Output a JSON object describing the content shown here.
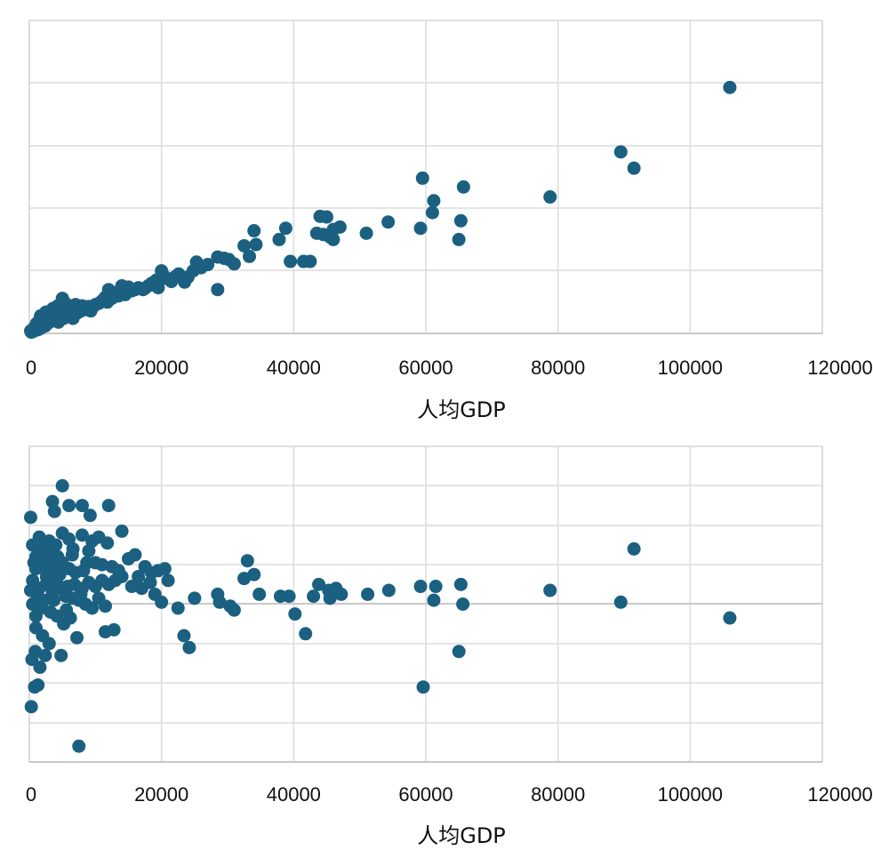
{
  "chart_data": [
    {
      "type": "scatter",
      "xlabel": "人均GDP",
      "ylabel": "",
      "title": "",
      "xlim": [
        0,
        120000
      ],
      "ylim": [
        0,
        5
      ],
      "xticks": [
        "0",
        "20000",
        "40000",
        "60000",
        "80000",
        "100000",
        "120000"
      ],
      "grid": true,
      "color": "#1b6080",
      "points": [
        [
          106000,
          3.93
        ],
        [
          89500,
          2.9
        ],
        [
          91500,
          2.64
        ],
        [
          78800,
          2.18
        ],
        [
          59500,
          2.48
        ],
        [
          61200,
          2.12
        ],
        [
          61000,
          1.93
        ],
        [
          65700,
          2.34
        ],
        [
          65300,
          1.8
        ],
        [
          65000,
          1.5
        ],
        [
          59200,
          1.68
        ],
        [
          54300,
          1.78
        ],
        [
          51000,
          1.6
        ],
        [
          47000,
          1.7
        ],
        [
          46000,
          1.66
        ],
        [
          45000,
          1.86
        ],
        [
          44000,
          1.87
        ],
        [
          43500,
          1.6
        ],
        [
          45500,
          1.54
        ],
        [
          46000,
          1.5
        ],
        [
          44500,
          1.58
        ],
        [
          42500,
          1.15
        ],
        [
          41500,
          1.15
        ],
        [
          39500,
          1.15
        ],
        [
          38800,
          1.68
        ],
        [
          37800,
          1.5
        ],
        [
          34000,
          1.64
        ],
        [
          34300,
          1.42
        ],
        [
          33300,
          1.23
        ],
        [
          32500,
          1.4
        ],
        [
          31000,
          1.11
        ],
        [
          30200,
          1.18
        ],
        [
          29500,
          1.2
        ],
        [
          28500,
          1.22
        ],
        [
          28500,
          0.7
        ],
        [
          25300,
          1.14
        ],
        [
          24800,
          1.0
        ],
        [
          23500,
          0.82
        ],
        [
          24000,
          0.9
        ],
        [
          22600,
          0.95
        ],
        [
          21500,
          0.83
        ],
        [
          20500,
          0.88
        ],
        [
          20000,
          1.0
        ],
        [
          19500,
          0.73
        ],
        [
          19000,
          0.77
        ],
        [
          18000,
          0.76
        ],
        [
          17200,
          0.7
        ],
        [
          16500,
          0.73
        ],
        [
          15500,
          0.68
        ],
        [
          15000,
          0.74
        ],
        [
          14500,
          0.62
        ],
        [
          14000,
          0.76
        ],
        [
          13500,
          0.6
        ],
        [
          12500,
          0.56
        ],
        [
          12000,
          0.7
        ],
        [
          11800,
          0.5
        ],
        [
          11000,
          0.52
        ],
        [
          10000,
          0.46
        ],
        [
          9600,
          0.42
        ],
        [
          9000,
          0.43
        ],
        [
          8500,
          0.38
        ],
        [
          8000,
          0.44
        ],
        [
          7800,
          0.36
        ],
        [
          7500,
          0.41
        ],
        [
          7000,
          0.46
        ],
        [
          6800,
          0.3
        ],
        [
          6500,
          0.4
        ],
        [
          6300,
          0.44
        ],
        [
          6000,
          0.36
        ],
        [
          5800,
          0.3
        ],
        [
          5700,
          0.4
        ],
        [
          5500,
          0.46
        ],
        [
          5300,
          0.5
        ],
        [
          5000,
          0.56
        ],
        [
          5000,
          0.34
        ],
        [
          4800,
          0.3
        ],
        [
          4700,
          0.26
        ],
        [
          4500,
          0.37
        ],
        [
          4300,
          0.44
        ],
        [
          4100,
          0.3
        ],
        [
          4000,
          0.36
        ],
        [
          3900,
          0.24
        ],
        [
          3800,
          0.31
        ],
        [
          3600,
          0.4
        ],
        [
          3500,
          0.2
        ],
        [
          3400,
          0.3
        ],
        [
          3300,
          0.25
        ],
        [
          3200,
          0.36
        ],
        [
          3000,
          0.2
        ],
        [
          2900,
          0.28
        ],
        [
          2800,
          0.16
        ],
        [
          2700,
          0.24
        ],
        [
          2600,
          0.32
        ],
        [
          2500,
          0.18
        ],
        [
          2400,
          0.12
        ],
        [
          2300,
          0.22
        ],
        [
          2200,
          0.26
        ],
        [
          2100,
          0.14
        ],
        [
          2000,
          0.2
        ],
        [
          1900,
          0.1
        ],
        [
          1800,
          0.17
        ],
        [
          1700,
          0.08
        ],
        [
          1600,
          0.14
        ],
        [
          1500,
          0.2
        ],
        [
          1400,
          0.1
        ],
        [
          1300,
          0.06
        ],
        [
          1200,
          0.12
        ],
        [
          1100,
          0.16
        ],
        [
          1000,
          0.08
        ],
        [
          900,
          0.05
        ],
        [
          800,
          0.1
        ],
        [
          700,
          0.04
        ],
        [
          600,
          0.06
        ],
        [
          500,
          0.03
        ],
        [
          400,
          0.05
        ],
        [
          300,
          0.02
        ],
        [
          200,
          0.04
        ],
        [
          6200,
          0.28
        ],
        [
          7300,
          0.33
        ],
        [
          8800,
          0.39
        ],
        [
          10500,
          0.48
        ],
        [
          11500,
          0.58
        ],
        [
          13000,
          0.65
        ],
        [
          16000,
          0.7
        ],
        [
          18500,
          0.8
        ],
        [
          20300,
          0.93
        ],
        [
          26000,
          1.05
        ],
        [
          27000,
          1.1
        ],
        [
          3700,
          0.28
        ],
        [
          5200,
          0.24
        ],
        [
          2500,
          0.34
        ],
        [
          1700,
          0.28
        ],
        [
          4400,
          0.18
        ],
        [
          6600,
          0.24
        ],
        [
          9300,
          0.36
        ],
        [
          12200,
          0.55
        ],
        [
          14800,
          0.66
        ],
        [
          17500,
          0.72
        ],
        [
          19200,
          0.85
        ],
        [
          22000,
          0.9
        ]
      ]
    },
    {
      "type": "scatter",
      "xlabel": "人均GDP",
      "ylabel": "",
      "title": "",
      "xlim": [
        0,
        120000
      ],
      "ylim": [
        -4,
        4
      ],
      "xticks": [
        "0",
        "20000",
        "40000",
        "60000",
        "80000",
        "100000",
        "120000"
      ],
      "grid": true,
      "color": "#1b6080",
      "points": [
        [
          5000,
          3.0
        ],
        [
          200,
          2.2
        ],
        [
          3500,
          2.6
        ],
        [
          3800,
          2.35
        ],
        [
          6000,
          2.5
        ],
        [
          8000,
          2.5
        ],
        [
          9200,
          2.25
        ],
        [
          12000,
          2.5
        ],
        [
          5000,
          1.8
        ],
        [
          3000,
          1.6
        ],
        [
          500,
          1.5
        ],
        [
          1500,
          1.7
        ],
        [
          2000,
          1.55
        ],
        [
          4000,
          1.5
        ],
        [
          6000,
          1.65
        ],
        [
          8000,
          1.75
        ],
        [
          9500,
          1.6
        ],
        [
          10500,
          1.7
        ],
        [
          11800,
          1.55
        ],
        [
          14000,
          1.85
        ],
        [
          4300,
          1.2
        ],
        [
          6500,
          1.25
        ],
        [
          2500,
          1.3
        ],
        [
          1000,
          1.2
        ],
        [
          8700,
          1.05
        ],
        [
          10000,
          1.05
        ],
        [
          11000,
          1.0
        ],
        [
          12500,
          0.95
        ],
        [
          15000,
          1.15
        ],
        [
          16000,
          1.25
        ],
        [
          17500,
          0.95
        ],
        [
          19500,
          0.85
        ],
        [
          18500,
          0.8
        ],
        [
          16500,
          0.7
        ],
        [
          14000,
          0.7
        ],
        [
          13000,
          0.6
        ],
        [
          12000,
          0.5
        ],
        [
          11000,
          0.6
        ],
        [
          10000,
          0.45
        ],
        [
          9000,
          0.55
        ],
        [
          8000,
          0.4
        ],
        [
          7000,
          0.8
        ],
        [
          6000,
          0.9
        ],
        [
          5000,
          1.05
        ],
        [
          4000,
          0.95
        ],
        [
          3000,
          0.85
        ],
        [
          2000,
          1.0
        ],
        [
          1000,
          0.9
        ],
        [
          500,
          0.6
        ],
        [
          1500,
          0.4
        ],
        [
          2500,
          0.5
        ],
        [
          3500,
          0.3
        ],
        [
          4500,
          0.4
        ],
        [
          5500,
          0.2
        ],
        [
          6500,
          0.15
        ],
        [
          7500,
          0.1
        ],
        [
          8500,
          0.0
        ],
        [
          9500,
          -0.1
        ],
        [
          10500,
          0.15
        ],
        [
          11500,
          -0.05
        ],
        [
          1200,
          0.2
        ],
        [
          2200,
          0.1
        ],
        [
          3200,
          -0.2
        ],
        [
          4200,
          -0.3
        ],
        [
          5200,
          -0.5
        ],
        [
          6200,
          -0.35
        ],
        [
          7200,
          -0.85
        ],
        [
          1000,
          -0.6
        ],
        [
          2000,
          -0.8
        ],
        [
          3000,
          -1.0
        ],
        [
          400,
          -1.4
        ],
        [
          900,
          -1.2
        ],
        [
          1600,
          -1.6
        ],
        [
          2400,
          -1.3
        ],
        [
          4800,
          -1.3
        ],
        [
          11500,
          -0.7
        ],
        [
          12800,
          -0.65
        ],
        [
          800,
          -2.1
        ],
        [
          1300,
          -2.05
        ],
        [
          300,
          -2.6
        ],
        [
          7500,
          -3.6
        ],
        [
          20500,
          0.9
        ],
        [
          21000,
          0.6
        ],
        [
          20000,
          0.05
        ],
        [
          22500,
          -0.1
        ],
        [
          23400,
          -0.8
        ],
        [
          24200,
          -1.1
        ],
        [
          25000,
          0.15
        ],
        [
          28500,
          0.25
        ],
        [
          28800,
          0.05
        ],
        [
          30400,
          -0.05
        ],
        [
          31000,
          -0.15
        ],
        [
          32500,
          0.65
        ],
        [
          33000,
          1.1
        ],
        [
          34000,
          0.75
        ],
        [
          34800,
          0.25
        ],
        [
          38000,
          0.2
        ],
        [
          39300,
          0.2
        ],
        [
          40200,
          -0.25
        ],
        [
          41800,
          -0.75
        ],
        [
          43000,
          0.2
        ],
        [
          43800,
          0.5
        ],
        [
          45300,
          0.35
        ],
        [
          45500,
          0.15
        ],
        [
          46400,
          0.4
        ],
        [
          47200,
          0.25
        ],
        [
          51200,
          0.25
        ],
        [
          54400,
          0.35
        ],
        [
          59200,
          0.45
        ],
        [
          59600,
          -2.1
        ],
        [
          61500,
          0.45
        ],
        [
          61200,
          0.1
        ],
        [
          65300,
          0.5
        ],
        [
          65600,
          0.0
        ],
        [
          65000,
          -1.2
        ],
        [
          78800,
          0.35
        ],
        [
          89500,
          0.05
        ],
        [
          91500,
          1.4
        ],
        [
          106000,
          -0.35
        ],
        [
          500,
          0.0
        ],
        [
          1000,
          -0.3
        ],
        [
          1800,
          -0.1
        ],
        [
          2600,
          0.7
        ],
        [
          3300,
          1.35
        ],
        [
          4100,
          0.6
        ],
        [
          5800,
          0.45
        ],
        [
          6800,
          0.5
        ],
        [
          7800,
          0.25
        ],
        [
          200,
          0.35
        ],
        [
          700,
          1.05
        ],
        [
          1300,
          1.35
        ],
        [
          2800,
          1.15
        ],
        [
          3700,
          0.1
        ],
        [
          4600,
          0.75
        ],
        [
          5600,
          -0.15
        ],
        [
          6600,
          1.4
        ],
        [
          8200,
          0.85
        ],
        [
          9000,
          1.35
        ],
        [
          13500,
          0.85
        ],
        [
          15500,
          0.45
        ],
        [
          17000,
          0.4
        ],
        [
          18300,
          0.55
        ],
        [
          19000,
          0.25
        ]
      ]
    }
  ]
}
